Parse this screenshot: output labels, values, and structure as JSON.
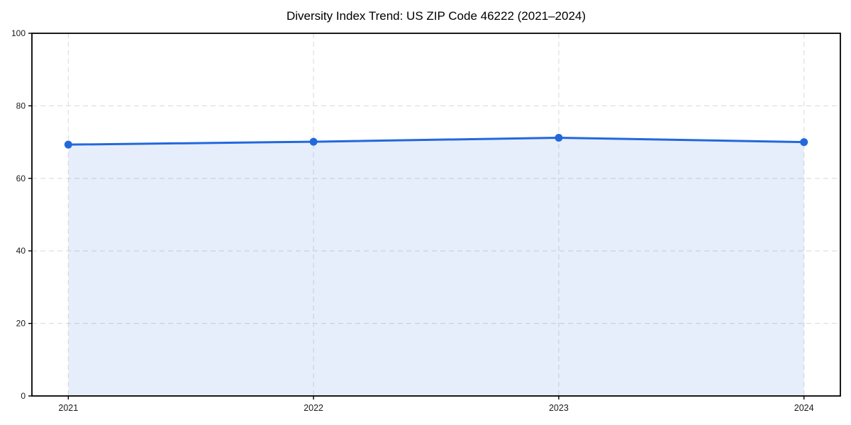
{
  "page": {
    "background": "#ffffff"
  },
  "chart_data": {
    "type": "area",
    "title": "Diversity Index Trend: US ZIP Code 46222 (2021–2024)",
    "categories": [
      "2021",
      "2022",
      "2023",
      "2024"
    ],
    "values": [
      69.3,
      70.1,
      71.2,
      70.0
    ],
    "xlabel": "",
    "ylabel": "",
    "ylim": [
      0,
      100
    ],
    "yticks": [
      0,
      20,
      40,
      60,
      80,
      100
    ],
    "grid": "dashed, both axes",
    "legend_position": "none",
    "colors": {
      "line": "#2268dd",
      "marker": "#2268dd",
      "fill": "rgba(34,104,221,0.11)",
      "grid": "#dcdcdc",
      "axis": "#000000",
      "tick_text": "#1a1a1a",
      "title_text": "#000000",
      "background": "#ffffff"
    }
  }
}
